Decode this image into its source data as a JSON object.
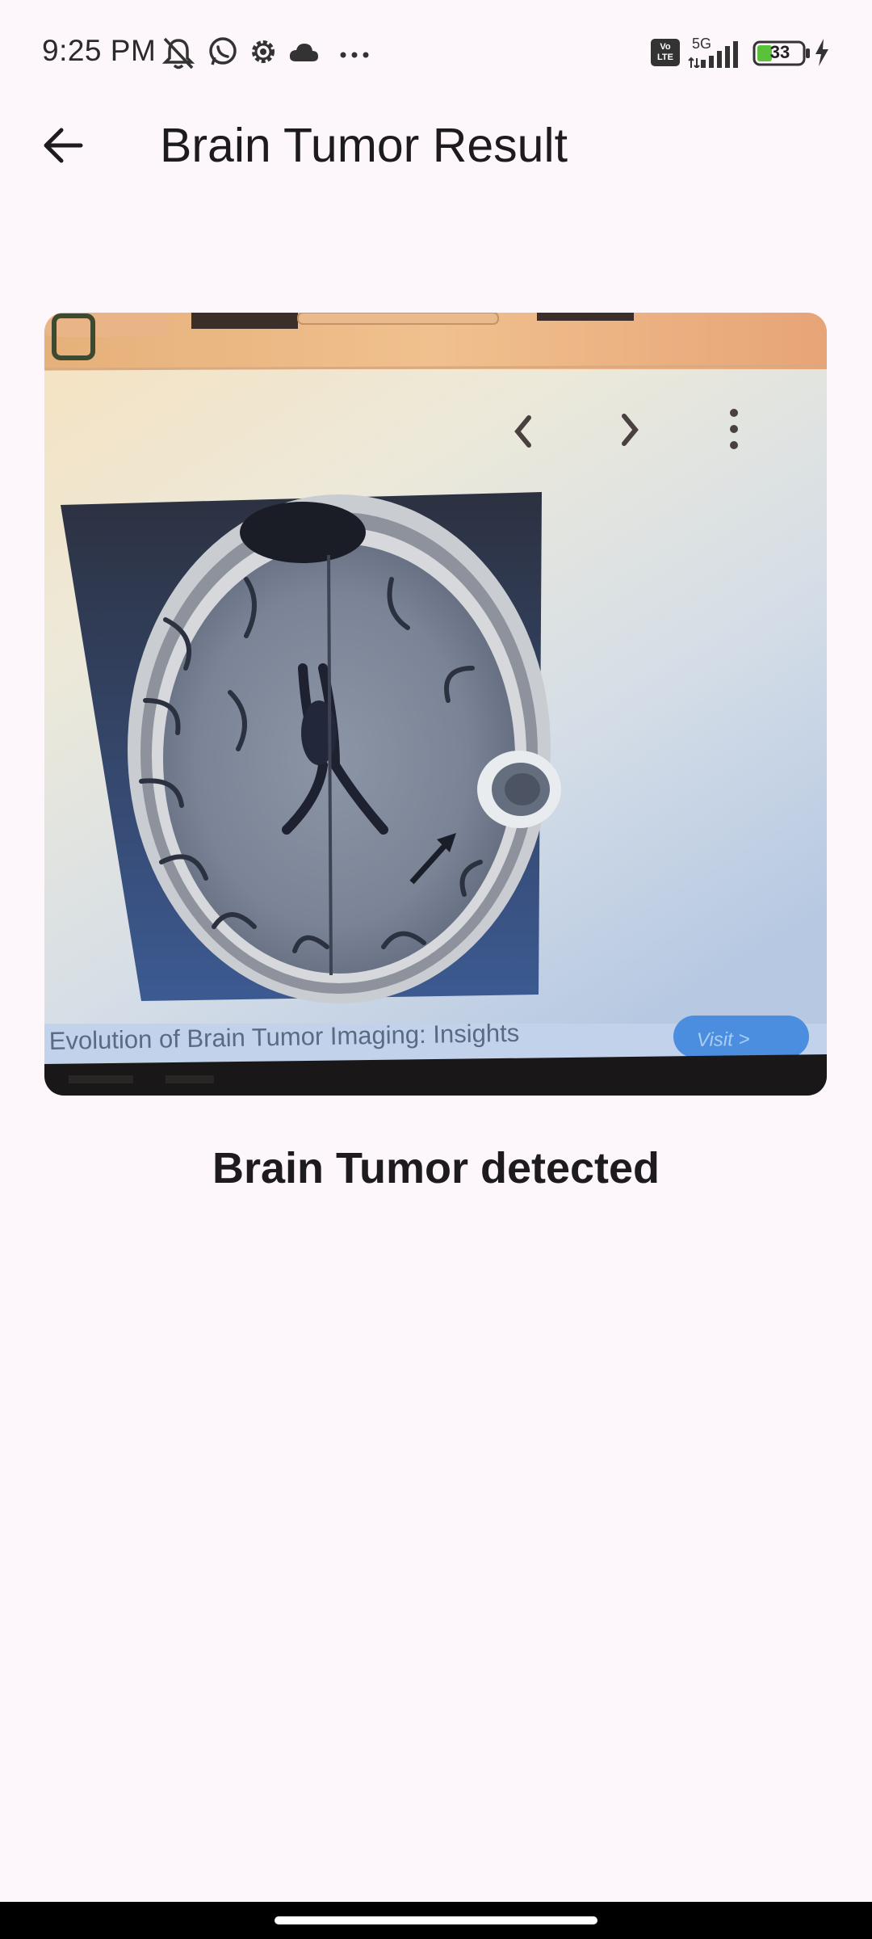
{
  "status_bar": {
    "time": "9:25 PM",
    "icons": [
      "muted-bell-icon",
      "whatsapp-icon",
      "settings-gear-icon",
      "cloud-icon",
      "more-dots-icon"
    ],
    "volte_label": "Vo LTE",
    "network_label": "5G",
    "battery_level": "33"
  },
  "app_bar": {
    "title": "Brain Tumor Result",
    "back_icon": "arrow-left-icon"
  },
  "image": {
    "caption": "Evolution of Brain Tumor Imaging: Insights",
    "visit_label": "Visit >"
  },
  "result": {
    "label": "Brain Tumor detected"
  },
  "colors": {
    "background": "#fdf6fb",
    "text": "#1d1b1e",
    "battery_fill": "#5ac13a"
  }
}
